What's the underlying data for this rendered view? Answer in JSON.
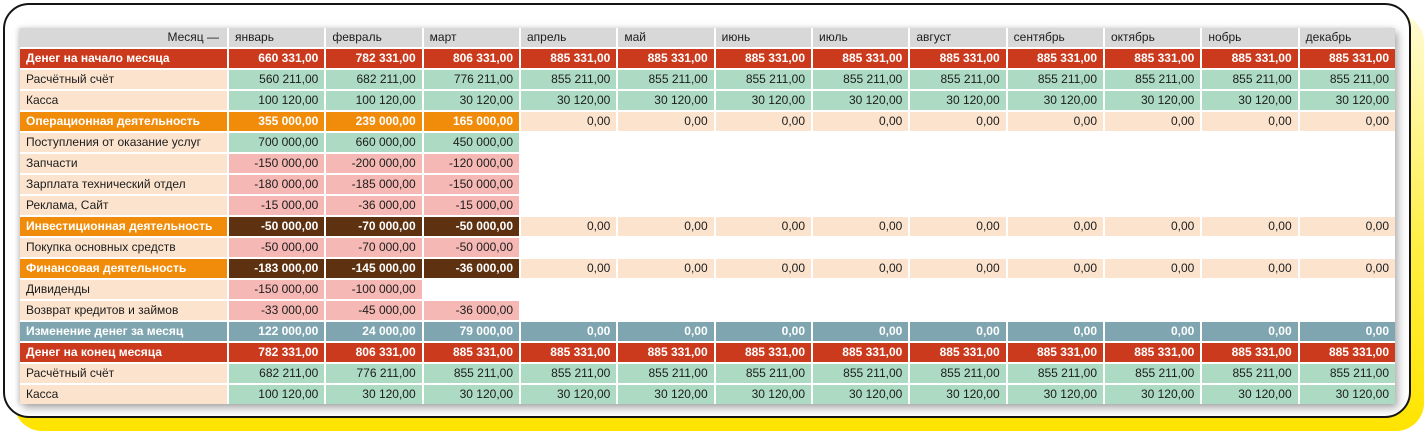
{
  "palette": {
    "red": "#cb3a1d",
    "orange": "#f08c0a",
    "brown": "#5e3110",
    "blue": "#7fa6b0",
    "green": "#acdac2",
    "pink": "#f5b8b4",
    "peach": "#fbe3cd",
    "hgray": "#d8d8d8",
    "yellow": "#ffe400",
    "border": "#151515"
  },
  "chart_data": {
    "type": "table",
    "title": "",
    "corner_label": "Месяц —",
    "months": [
      "январь",
      "февраль",
      "март",
      "апрель",
      "май",
      "июнь",
      "июль",
      "август",
      "сентябрь",
      "октябрь",
      "нобрь",
      "декабрь"
    ],
    "rows": [
      {
        "label": "Денег на начало месяца",
        "label_style": "red",
        "values": [
          "660 331,00",
          "782 331,00",
          "806 331,00",
          "885 331,00",
          "885 331,00",
          "885 331,00",
          "885 331,00",
          "885 331,00",
          "885 331,00",
          "885 331,00",
          "885 331,00",
          "885 331,00"
        ],
        "styles": [
          "red",
          "red",
          "red",
          "red",
          "red",
          "red",
          "red",
          "red",
          "red",
          "red",
          "red",
          "red"
        ]
      },
      {
        "label": "Расчётный счёт",
        "label_style": "peach",
        "values": [
          "560 211,00",
          "682 211,00",
          "776 211,00",
          "855 211,00",
          "855 211,00",
          "855 211,00",
          "855 211,00",
          "855 211,00",
          "855 211,00",
          "855 211,00",
          "855 211,00",
          "855 211,00"
        ],
        "styles": [
          "green",
          "green",
          "green",
          "green",
          "green",
          "green",
          "green",
          "green",
          "green",
          "green",
          "green",
          "green"
        ]
      },
      {
        "label": "Касса",
        "label_style": "peach",
        "values": [
          "100 120,00",
          "100 120,00",
          "30 120,00",
          "30 120,00",
          "30 120,00",
          "30 120,00",
          "30 120,00",
          "30 120,00",
          "30 120,00",
          "30 120,00",
          "30 120,00",
          "30 120,00"
        ],
        "styles": [
          "green",
          "green",
          "green",
          "green",
          "green",
          "green",
          "green",
          "green",
          "green",
          "green",
          "green",
          "green"
        ]
      },
      {
        "label": "Операционная деятельность",
        "label_style": "orange",
        "values": [
          "355 000,00",
          "239 000,00",
          "165 000,00",
          "0,00",
          "0,00",
          "0,00",
          "0,00",
          "0,00",
          "0,00",
          "0,00",
          "0,00",
          "0,00"
        ],
        "styles": [
          "orange",
          "orange",
          "orange",
          "peach",
          "peach",
          "peach",
          "peach",
          "peach",
          "peach",
          "peach",
          "peach",
          "peach"
        ]
      },
      {
        "label": "Поступления от оказание услуг",
        "label_style": "peach",
        "values": [
          "700 000,00",
          "660 000,00",
          "450 000,00",
          "",
          "",
          "",
          "",
          "",
          "",
          "",
          "",
          ""
        ],
        "styles": [
          "green",
          "green",
          "green",
          "blank",
          "blank",
          "blank",
          "blank",
          "blank",
          "blank",
          "blank",
          "blank",
          "blank"
        ]
      },
      {
        "label": "Запчасти",
        "label_style": "peach",
        "values": [
          "-150 000,00",
          "-200 000,00",
          "-120 000,00",
          "",
          "",
          "",
          "",
          "",
          "",
          "",
          "",
          ""
        ],
        "styles": [
          "pink",
          "pink",
          "pink",
          "blank",
          "blank",
          "blank",
          "blank",
          "blank",
          "blank",
          "blank",
          "blank",
          "blank"
        ]
      },
      {
        "label": "Зарплата технический отдел",
        "label_style": "peach",
        "values": [
          "-180 000,00",
          "-185 000,00",
          "-150 000,00",
          "",
          "",
          "",
          "",
          "",
          "",
          "",
          "",
          ""
        ],
        "styles": [
          "pink",
          "pink",
          "pink",
          "blank",
          "blank",
          "blank",
          "blank",
          "blank",
          "blank",
          "blank",
          "blank",
          "blank"
        ]
      },
      {
        "label": "Реклама, Сайт",
        "label_style": "peach",
        "values": [
          "-15 000,00",
          "-36 000,00",
          "-15 000,00",
          "",
          "",
          "",
          "",
          "",
          "",
          "",
          "",
          ""
        ],
        "styles": [
          "pink",
          "pink",
          "pink",
          "blank",
          "blank",
          "blank",
          "blank",
          "blank",
          "blank",
          "blank",
          "blank",
          "blank"
        ]
      },
      {
        "label": "Инвестиционная деятельность",
        "label_style": "orange",
        "values": [
          "-50 000,00",
          "-70 000,00",
          "-50 000,00",
          "0,00",
          "0,00",
          "0,00",
          "0,00",
          "0,00",
          "0,00",
          "0,00",
          "0,00",
          "0,00"
        ],
        "styles": [
          "brown",
          "brown",
          "brown",
          "peach",
          "peach",
          "peach",
          "peach",
          "peach",
          "peach",
          "peach",
          "peach",
          "peach"
        ]
      },
      {
        "label": "Покупка основных средств",
        "label_style": "peach",
        "values": [
          "-50 000,00",
          "-70 000,00",
          "-50 000,00",
          "",
          "",
          "",
          "",
          "",
          "",
          "",
          "",
          ""
        ],
        "styles": [
          "pink",
          "pink",
          "pink",
          "blank",
          "blank",
          "blank",
          "blank",
          "blank",
          "blank",
          "blank",
          "blank",
          "blank"
        ]
      },
      {
        "label": "Финансовая деятельность",
        "label_style": "orange",
        "values": [
          "-183 000,00",
          "-145 000,00",
          "-36 000,00",
          "0,00",
          "0,00",
          "0,00",
          "0,00",
          "0,00",
          "0,00",
          "0,00",
          "0,00",
          "0,00"
        ],
        "styles": [
          "brown",
          "brown",
          "brown",
          "peach",
          "peach",
          "peach",
          "peach",
          "peach",
          "peach",
          "peach",
          "peach",
          "peach"
        ]
      },
      {
        "label": "Дивиденды",
        "label_style": "peach",
        "values": [
          "-150 000,00",
          "-100 000,00",
          "",
          "",
          "",
          "",
          "",
          "",
          "",
          "",
          "",
          ""
        ],
        "styles": [
          "pink",
          "pink",
          "blank",
          "blank",
          "blank",
          "blank",
          "blank",
          "blank",
          "blank",
          "blank",
          "blank",
          "blank"
        ]
      },
      {
        "label": "Возврат кредитов и займов",
        "label_style": "peach",
        "values": [
          "-33 000,00",
          "-45 000,00",
          "-36 000,00",
          "",
          "",
          "",
          "",
          "",
          "",
          "",
          "",
          ""
        ],
        "styles": [
          "pink",
          "pink",
          "pink",
          "blank",
          "blank",
          "blank",
          "blank",
          "blank",
          "blank",
          "blank",
          "blank",
          "blank"
        ]
      },
      {
        "label": "Изменение денег за месяц",
        "label_style": "blue",
        "values": [
          "122 000,00",
          "24 000,00",
          "79 000,00",
          "0,00",
          "0,00",
          "0,00",
          "0,00",
          "0,00",
          "0,00",
          "0,00",
          "0,00",
          "0,00"
        ],
        "styles": [
          "blue",
          "blue",
          "blue",
          "blue",
          "blue",
          "blue",
          "blue",
          "blue",
          "blue",
          "blue",
          "blue",
          "blue"
        ]
      },
      {
        "label": "Денег на конец месяца",
        "label_style": "red",
        "values": [
          "782 331,00",
          "806 331,00",
          "885 331,00",
          "885 331,00",
          "885 331,00",
          "885 331,00",
          "885 331,00",
          "885 331,00",
          "885 331,00",
          "885 331,00",
          "885 331,00",
          "885 331,00"
        ],
        "styles": [
          "red",
          "red",
          "red",
          "red",
          "red",
          "red",
          "red",
          "red",
          "red",
          "red",
          "red",
          "red"
        ]
      },
      {
        "label": "Расчётный счёт",
        "label_style": "peach",
        "values": [
          "682 211,00",
          "776 211,00",
          "855 211,00",
          "855 211,00",
          "855 211,00",
          "855 211,00",
          "855 211,00",
          "855 211,00",
          "855 211,00",
          "855 211,00",
          "855 211,00",
          "855 211,00"
        ],
        "styles": [
          "green",
          "green",
          "green",
          "green",
          "green",
          "green",
          "green",
          "green",
          "green",
          "green",
          "green",
          "green"
        ]
      },
      {
        "label": "Касса",
        "label_style": "peach",
        "values": [
          "100 120,00",
          "30 120,00",
          "30 120,00",
          "30 120,00",
          "30 120,00",
          "30 120,00",
          "30 120,00",
          "30 120,00",
          "30 120,00",
          "30 120,00",
          "30 120,00",
          "30 120,00"
        ],
        "styles": [
          "green",
          "green",
          "green",
          "green",
          "green",
          "green",
          "green",
          "green",
          "green",
          "green",
          "green",
          "green"
        ]
      }
    ]
  }
}
